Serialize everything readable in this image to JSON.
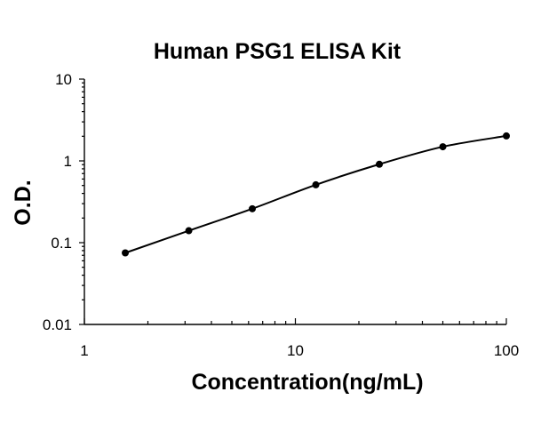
{
  "chart_data": {
    "type": "scatter",
    "title": "Human PSG1 ELISA Kit",
    "xlabel": "Concentration(ng/mL)",
    "ylabel": "O.D.",
    "x_scale": "log",
    "y_scale": "log",
    "xlim": [
      1,
      100
    ],
    "ylim": [
      0.01,
      10
    ],
    "x_ticks": [
      "1",
      "10",
      "100"
    ],
    "y_ticks": [
      "0.01",
      "0.1",
      "1",
      "10"
    ],
    "grid": false,
    "legend": "none",
    "fit_line": true,
    "series": [
      {
        "x": [
          1.5625,
          3.125,
          6.25,
          12.5,
          25,
          50,
          100
        ],
        "y": [
          0.075,
          0.14,
          0.26,
          0.51,
          0.91,
          1.49,
          2.02
        ]
      }
    ],
    "colors": {
      "line": "#000000",
      "marker": "#000000"
    }
  }
}
